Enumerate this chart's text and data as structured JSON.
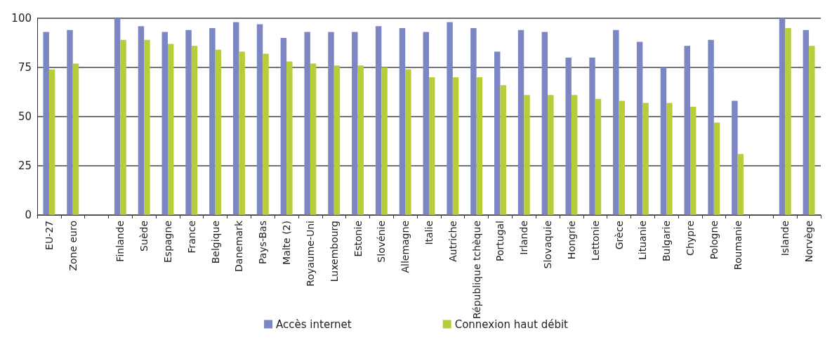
{
  "chart_data": {
    "type": "bar",
    "categories": [
      "EU-27",
      "Zone euro",
      null,
      "Finlande",
      "Suède",
      "Espagne",
      "France",
      "Belgique",
      "Danemark",
      "Pays-Bas",
      "Malte (2)",
      "Royaume-Uni",
      "Luxembourg",
      "Estonie",
      "Slovénie",
      "Allemagne",
      "Italie",
      "Autriche",
      "République tchèque",
      "Portugal",
      "Irlande",
      "Slovaquie",
      "Hongrie",
      "Lettonie",
      "Grèce",
      "Lituanie",
      "Bulgarie",
      "Chypre",
      "Pologne",
      "Roumanie",
      null,
      "Islande",
      "Norvège"
    ],
    "series": [
      {
        "name": "Accès internet",
        "color": "#7b86c2",
        "values": [
          93,
          94,
          null,
          100,
          96,
          93,
          94,
          95,
          98,
          97,
          90,
          93,
          93,
          93,
          96,
          95,
          93,
          98,
          95,
          83,
          94,
          93,
          80,
          80,
          94,
          88,
          75,
          86,
          89,
          58,
          null,
          100,
          94
        ]
      },
      {
        "name": "Connexion haut débit",
        "color": "#b8cd3a",
        "values": [
          74,
          77,
          null,
          89,
          89,
          87,
          86,
          84,
          83,
          82,
          78,
          77,
          76,
          76,
          75,
          74,
          70,
          70,
          70,
          66,
          61,
          61,
          61,
          59,
          58,
          57,
          57,
          55,
          47,
          31,
          null,
          95,
          86
        ]
      }
    ],
    "ylim": [
      0,
      100
    ],
    "yticks": [
      0,
      25,
      50,
      75,
      100
    ],
    "grid": "y",
    "legend": "bottom"
  }
}
